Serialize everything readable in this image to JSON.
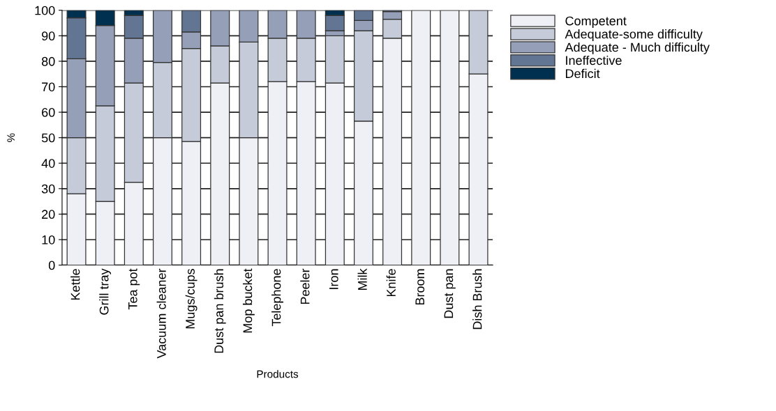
{
  "chart_data": {
    "type": "bar",
    "stacked": true,
    "xlabel": "Products",
    "ylabel": "%",
    "categories": [
      "Kettle",
      "Grill tray",
      "Tea pot",
      "Vacuum cleaner",
      "Mugs/cups",
      "Dust pan brush",
      "Mop bucket",
      "Telephone",
      "Peeler",
      "Iron",
      "Milk",
      "Knife",
      "Broom",
      "Dust pan",
      "Dish Brush"
    ],
    "series": [
      {
        "name": "Competent",
        "color": "#eef0f5",
        "values": [
          28,
          25,
          32.5,
          50,
          48.5,
          71.5,
          50,
          72,
          72,
          71.5,
          56.5,
          89,
          100,
          100,
          75
        ]
      },
      {
        "name": "Adequate-some difficulty",
        "color": "#c5cbd9",
        "values": [
          22,
          37.5,
          39,
          29.5,
          36.5,
          14.5,
          37.5,
          17,
          17,
          18.5,
          35.5,
          7.5,
          0,
          0,
          25
        ]
      },
      {
        "name": "Adequate - Much difficulty",
        "color": "#959fb8",
        "values": [
          31,
          31.5,
          17.5,
          20.5,
          6.5,
          14,
          12.5,
          11,
          11,
          2,
          4,
          3,
          0,
          0,
          0
        ]
      },
      {
        "name": "Ineffective",
        "color": "#627593",
        "values": [
          16,
          0,
          9,
          0,
          8.5,
          0,
          0,
          0,
          0,
          6,
          4,
          0.5,
          0,
          0,
          0
        ]
      },
      {
        "name": "Deficit",
        "color": "#00304f",
        "values": [
          3,
          6,
          2,
          0,
          0,
          0,
          0,
          0,
          0,
          2,
          0,
          0,
          0,
          0,
          0
        ]
      }
    ],
    "ylim": [
      0,
      100
    ],
    "yticks": [
      0,
      10,
      20,
      30,
      40,
      50,
      60,
      70,
      80,
      90,
      100
    ],
    "grid": "y",
    "legend": "top right"
  }
}
